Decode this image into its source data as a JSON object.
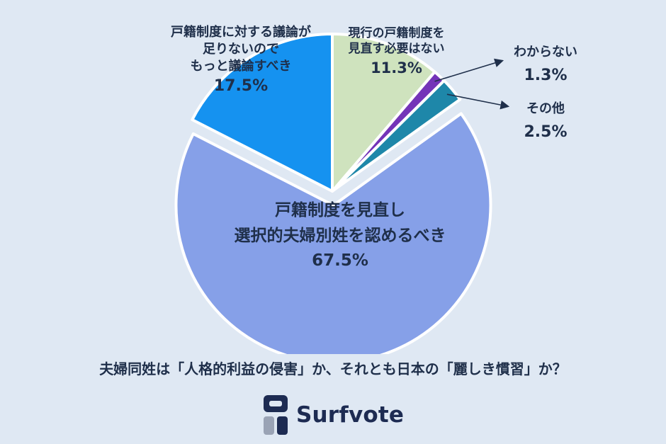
{
  "chart_data": {
    "type": "pie",
    "title": "",
    "slices": [
      {
        "label": "戸籍制度を見直し選択的夫婦別姓を認めるべき",
        "label_lines": [
          "戸籍制度を見直し",
          "選択的夫婦別姓を認めるべき"
        ],
        "value": 67.5,
        "value_label": "67.5%",
        "color": "#86a0e8",
        "exploded": true
      },
      {
        "label": "戸籍制度に対する議論が足りないのでもっと議論すべき",
        "label_lines": [
          "戸籍制度に対する議論が",
          "足りないので",
          "もっと議論すべき"
        ],
        "value": 17.5,
        "value_label": "17.5%",
        "color": "#1592f0",
        "exploded": false
      },
      {
        "label": "現行の戸籍制度を見直す必要はない",
        "label_lines": [
          "現行の戸籍制度を",
          "見直す必要はない"
        ],
        "value": 11.3,
        "value_label": "11.3%",
        "color": "#cfe3be",
        "exploded": false
      },
      {
        "label": "わからない",
        "label_lines": [
          "わからない"
        ],
        "value": 1.3,
        "value_label": "1.3%",
        "color": "#7434b8",
        "exploded": false
      },
      {
        "label": "その他",
        "label_lines": [
          "その他"
        ],
        "value": 2.5,
        "value_label": "2.5%",
        "color": "#1e87a9",
        "exploded": false
      }
    ],
    "legend": "none"
  },
  "question": "夫婦同姓は「人格的利益の侵害」か、それとも日本の「麗しき慣習」か？",
  "brand": {
    "name": "Surfvote",
    "color": "#1d2b52"
  }
}
